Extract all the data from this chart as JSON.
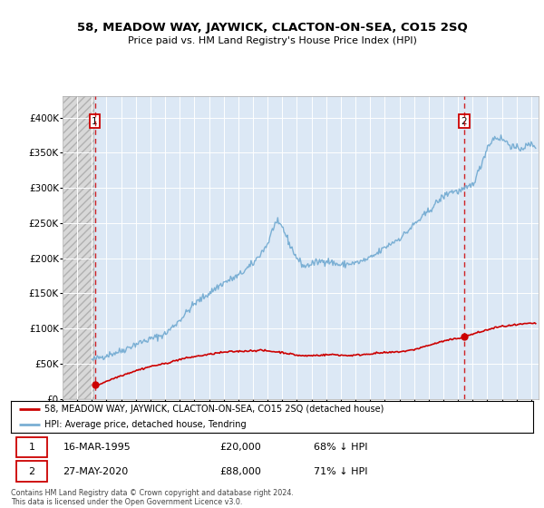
{
  "title": "58, MEADOW WAY, JAYWICK, CLACTON-ON-SEA, CO15 2SQ",
  "subtitle": "Price paid vs. HM Land Registry's House Price Index (HPI)",
  "ylabel_ticks": [
    "£0",
    "£50K",
    "£100K",
    "£150K",
    "£200K",
    "£250K",
    "£300K",
    "£350K",
    "£400K"
  ],
  "ytick_values": [
    0,
    50000,
    100000,
    150000,
    200000,
    250000,
    300000,
    350000,
    400000
  ],
  "ylim": [
    0,
    430000
  ],
  "xlim_start": 1993.0,
  "xlim_end": 2025.5,
  "hatch_end_year": 1995.15,
  "sale1_year": 1995.2,
  "sale1_price": 20000,
  "sale1_label": "1",
  "sale2_year": 2020.42,
  "sale2_price": 88000,
  "sale2_label": "2",
  "legend_line1": "58, MEADOW WAY, JAYWICK, CLACTON-ON-SEA, CO15 2SQ (detached house)",
  "legend_line2": "HPI: Average price, detached house, Tendring",
  "annotation1_date": "16-MAR-1995",
  "annotation1_price": "£20,000",
  "annotation1_hpi": "68% ↓ HPI",
  "annotation2_date": "27-MAY-2020",
  "annotation2_price": "£88,000",
  "annotation2_hpi": "71% ↓ HPI",
  "footer": "Contains HM Land Registry data © Crown copyright and database right 2024.\nThis data is licensed under the Open Government Licence v3.0.",
  "line_color_red": "#cc0000",
  "line_color_blue": "#7aafd4",
  "bg_color": "#dce8f5",
  "vline_color": "#cc0000",
  "marker_color": "#cc0000"
}
